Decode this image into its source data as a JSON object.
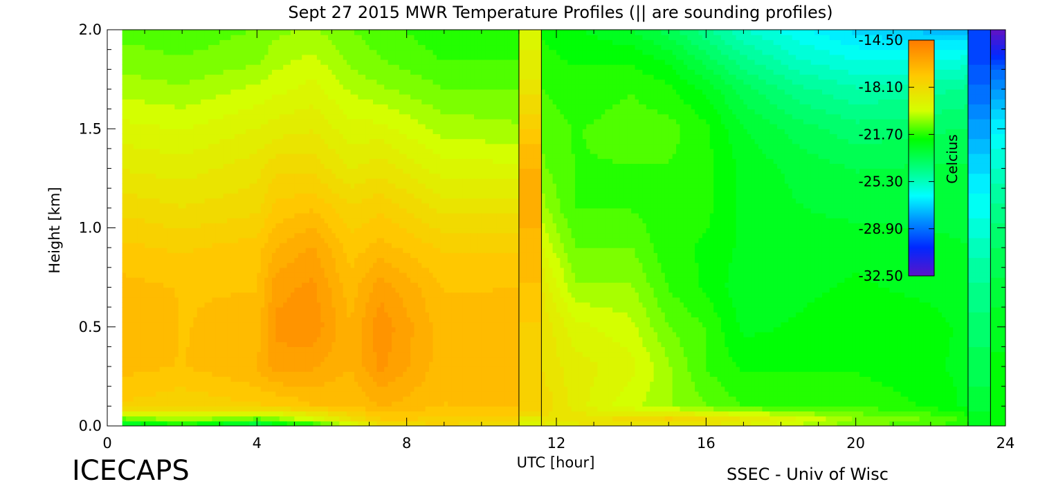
{
  "chart_data": {
    "type": "heatmap",
    "title": "Sept 27 2015 MWR Temperature Profiles (|| are sounding profiles)",
    "xlabel": "UTC [hour]",
    "ylabel": "Height [km]",
    "xlim": [
      0,
      24
    ],
    "ylim": [
      0.0,
      2.0
    ],
    "x_ticks": [
      "0",
      "4",
      "8",
      "12",
      "16",
      "20",
      "24"
    ],
    "y_ticks": [
      "0.0",
      "0.5",
      "1.0",
      "1.5",
      "2.0"
    ],
    "colorbar": {
      "label": "Celcius",
      "range": [
        -32.5,
        -14.5
      ],
      "ticks": [
        "-14.50",
        "-18.10",
        "-21.70",
        "-25.30",
        "-28.90",
        "-32.50"
      ]
    },
    "data_start_hour": 0.4,
    "sounding_profiles": [
      {
        "start": 11.0,
        "end": 11.6
      },
      {
        "start": 23.0,
        "end": 23.6
      }
    ],
    "temperature_grid": {
      "hours": [
        0.4,
        2,
        4,
        4.5,
        5.5,
        6.5,
        7.3,
        9,
        11,
        11.7,
        12.5,
        14,
        15,
        16,
        17,
        18.5,
        20,
        22,
        23
      ],
      "heights_km": [
        0.0,
        0.03,
        0.1,
        0.3,
        0.5,
        0.7,
        0.9,
        1.1,
        1.3,
        1.5,
        1.7,
        1.85,
        2.0
      ],
      "values_c": [
        [
          -23.5,
          -22.5,
          -24.0,
          -23.0,
          -22.5,
          -20.5,
          -18.5,
          -18.0,
          -18.5,
          -19.0,
          -19.0,
          -19.0,
          -19.5,
          -19.0,
          -19.5,
          -20.5,
          -21.0,
          -21.5,
          -22.0
        ],
        [
          -21.5,
          -20.5,
          -21.5,
          -21.0,
          -20.0,
          -18.5,
          -17.5,
          -17.5,
          -17.8,
          -18.5,
          -18.5,
          -18.0,
          -17.5,
          -18.0,
          -18.5,
          -19.5,
          -20.5,
          -21.0,
          -21.5
        ],
        [
          -17.5,
          -17.8,
          -17.5,
          -17.5,
          -17.0,
          -17.0,
          -16.5,
          -17.0,
          -16.8,
          -18.0,
          -19.0,
          -20.0,
          -20.5,
          -21.0,
          -21.5,
          -21.5,
          -21.5,
          -22.0,
          -22.5
        ],
        [
          -16.8,
          -17.0,
          -16.5,
          -15.8,
          -16.0,
          -16.5,
          -15.5,
          -16.8,
          -16.8,
          -18.5,
          -19.0,
          -19.5,
          -20.5,
          -21.5,
          -22.0,
          -22.0,
          -22.0,
          -22.3,
          -22.5
        ],
        [
          -16.5,
          -17.0,
          -16.8,
          -15.5,
          -15.3,
          -16.5,
          -15.3,
          -16.8,
          -16.5,
          -18.5,
          -19.5,
          -20.0,
          -21.0,
          -21.5,
          -22.5,
          -22.3,
          -22.0,
          -22.2,
          -22.5
        ],
        [
          -16.8,
          -17.0,
          -17.0,
          -15.8,
          -15.5,
          -16.8,
          -15.8,
          -17.0,
          -17.0,
          -19.0,
          -20.5,
          -20.5,
          -21.5,
          -22.0,
          -22.7,
          -22.5,
          -22.3,
          -22.5,
          -22.7
        ],
        [
          -17.3,
          -17.5,
          -17.2,
          -16.5,
          -16.0,
          -17.2,
          -16.8,
          -17.5,
          -17.5,
          -19.8,
          -21.0,
          -21.0,
          -21.8,
          -22.0,
          -22.5,
          -22.5,
          -22.5,
          -22.7,
          -22.8
        ],
        [
          -18.0,
          -18.3,
          -18.0,
          -17.3,
          -17.0,
          -17.8,
          -17.5,
          -18.5,
          -18.5,
          -20.5,
          -21.5,
          -21.5,
          -21.8,
          -21.8,
          -22.5,
          -22.8,
          -23.0,
          -23.0,
          -23.0
        ],
        [
          -18.8,
          -19.0,
          -18.5,
          -18.0,
          -18.0,
          -18.8,
          -18.5,
          -19.5,
          -19.5,
          -21.0,
          -21.5,
          -21.5,
          -21.5,
          -21.8,
          -22.5,
          -23.0,
          -23.3,
          -23.2,
          -23.2
        ],
        [
          -19.5,
          -19.7,
          -19.2,
          -19.0,
          -18.8,
          -19.5,
          -19.5,
          -20.3,
          -20.5,
          -21.3,
          -21.5,
          -21.3,
          -21.3,
          -21.8,
          -22.8,
          -23.5,
          -24.0,
          -23.8,
          -23.7
        ],
        [
          -20.3,
          -20.5,
          -20.0,
          -19.8,
          -19.5,
          -20.2,
          -20.5,
          -21.0,
          -21.0,
          -21.5,
          -21.7,
          -21.5,
          -21.8,
          -22.5,
          -23.5,
          -24.5,
          -25.0,
          -24.8,
          -24.5
        ],
        [
          -20.8,
          -21.0,
          -20.7,
          -20.3,
          -20.0,
          -20.7,
          -21.0,
          -21.5,
          -21.5,
          -21.8,
          -22.0,
          -22.0,
          -22.5,
          -23.5,
          -24.5,
          -25.5,
          -26.0,
          -26.0,
          -25.8
        ],
        [
          -21.2,
          -21.3,
          -21.0,
          -20.7,
          -20.5,
          -21.0,
          -21.3,
          -21.8,
          -21.8,
          -22.0,
          -22.3,
          -22.8,
          -23.5,
          -24.5,
          -25.5,
          -26.3,
          -27.0,
          -27.5,
          -27.5
        ]
      ]
    },
    "sounding_column_1": {
      "heights_km": [
        0.0,
        0.05,
        0.1,
        0.3,
        0.5,
        0.7,
        0.9,
        1.0,
        1.2,
        1.4,
        1.6,
        1.8,
        2.0
      ],
      "values_c": [
        -20.0,
        -18.5,
        -17.5,
        -17.8,
        -17.5,
        -17.0,
        -16.8,
        -16.5,
        -16.3,
        -16.8,
        -18.0,
        -19.0,
        -19.5
      ]
    },
    "sounding_column_2": {
      "heights_km": [
        0.0,
        0.1,
        0.3,
        0.5,
        0.7,
        0.9,
        1.0,
        1.2,
        1.4,
        1.6,
        1.8,
        2.0
      ],
      "values_c": [
        -22.5,
        -23.0,
        -23.5,
        -24.0,
        -24.5,
        -25.3,
        -25.8,
        -26.5,
        -27.5,
        -28.5,
        -29.5,
        -30.0
      ]
    },
    "after_sounding_2": {
      "heights_km": [
        0.0,
        0.5,
        1.0,
        1.5,
        1.8,
        2.0
      ],
      "values_c": [
        -22.0,
        -22.5,
        -24.0,
        -26.5,
        -29.0,
        -32.5
      ]
    }
  },
  "labels": {
    "logo_text": "ICECAPS",
    "credit": "SSEC - Univ of Wisc"
  }
}
